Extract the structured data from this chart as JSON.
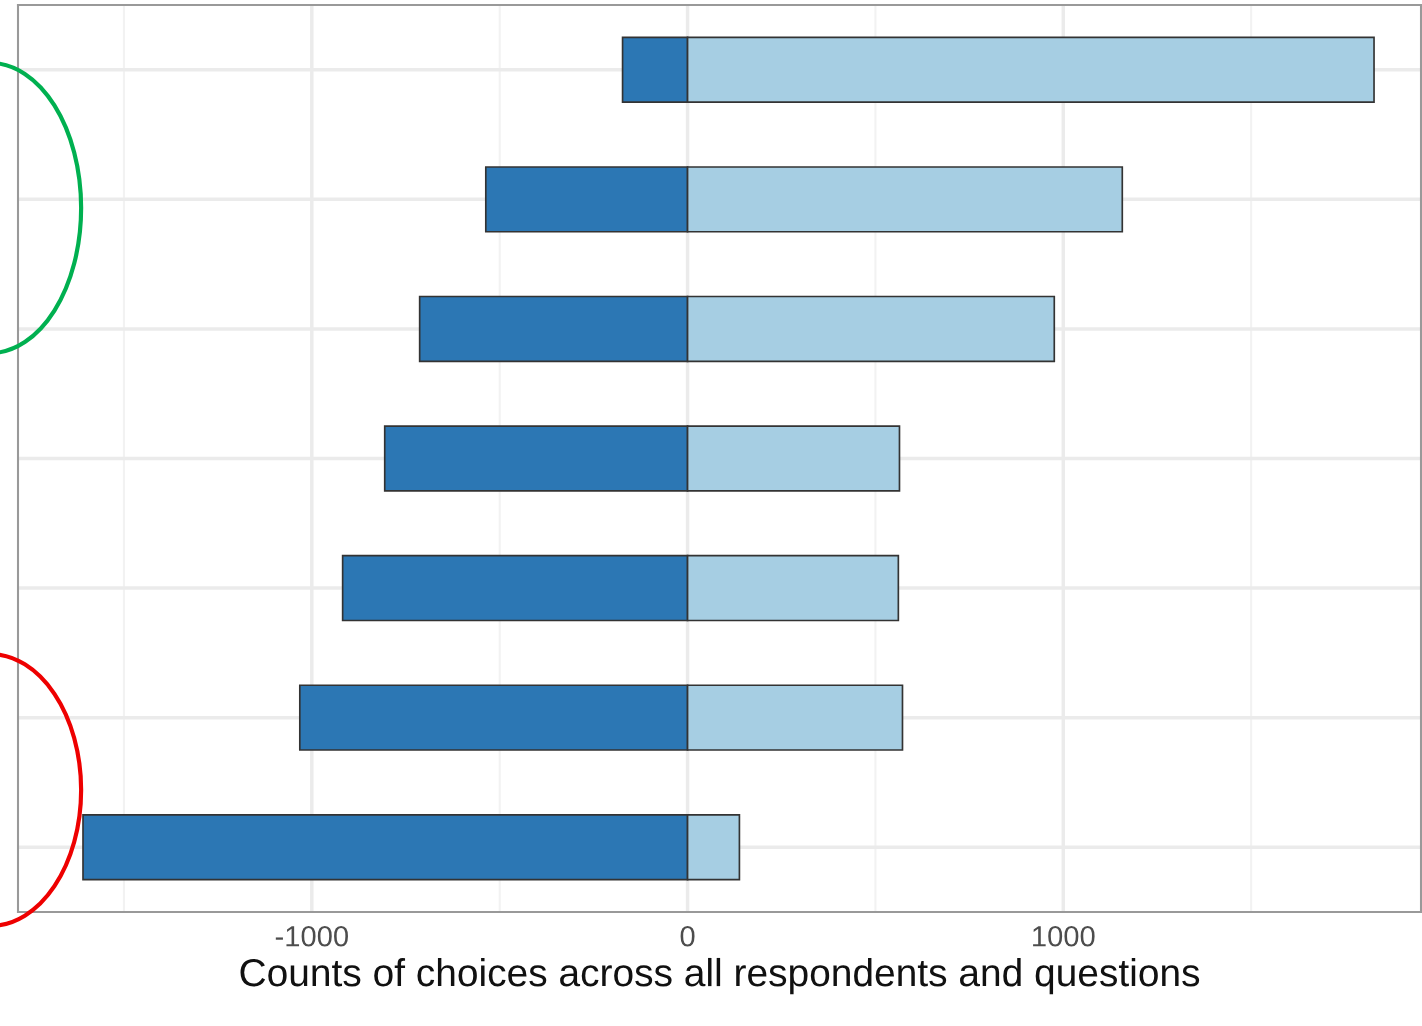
{
  "chart_data": {
    "type": "bar",
    "orientation": "horizontal",
    "stacked": true,
    "categories": [
      null,
      null,
      null,
      null,
      null,
      null,
      null
    ],
    "series": [
      {
        "color": "#2c77b4",
        "values": [
          -173,
          -537,
          -713,
          -806,
          -918,
          -1032,
          -1609
        ]
      },
      {
        "color": "#a6cee3",
        "values": [
          1827,
          1157,
          976,
          564,
          561,
          572,
          138
        ]
      }
    ],
    "xlabel": "Counts of choices across all respondents and questions",
    "xlim": [
      -1782,
      1952
    ],
    "xticks": [
      -1000,
      0,
      1000
    ],
    "grid": true
  }
}
